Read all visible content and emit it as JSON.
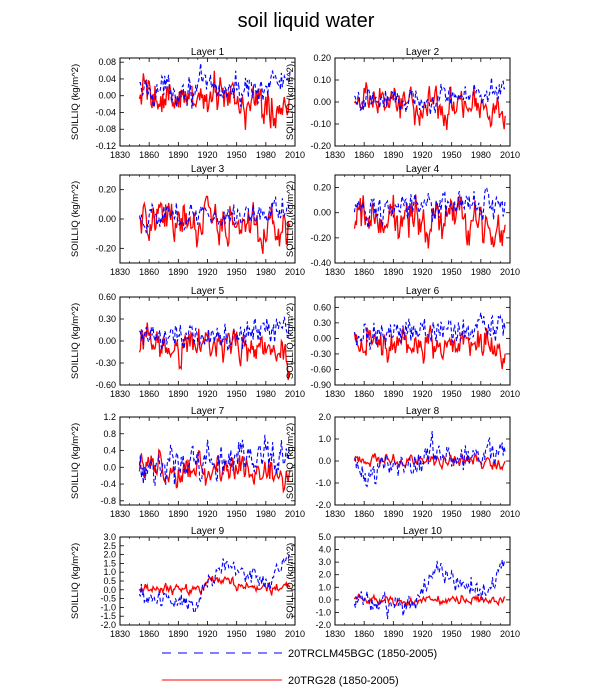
{
  "chart_data": {
    "type": "line",
    "title": "soil liquid water",
    "x_range": [
      1830,
      2010
    ],
    "x_ticks": [
      1830,
      1860,
      1890,
      1920,
      1950,
      1980,
      2010
    ],
    "legend": [
      {
        "label": "20TRCLM45BGC (1850-2005)",
        "color": "#0000ff",
        "style": "dashed"
      },
      {
        "label": "20TRG28 (1850-2005)",
        "color": "#ff0000",
        "style": "solid"
      }
    ],
    "series_period": [
      1850,
      2005
    ],
    "panels": [
      {
        "title": "Layer 1",
        "ylabel": "SOILLIQ  (kg/m^2)",
        "ylim": [
          -0.12,
          0.09
        ],
        "yticks": [
          -0.12,
          -0.08,
          -0.04,
          0.0,
          0.04,
          0.08
        ],
        "ytick_labels": [
          "-0.12",
          "-0.08",
          "-0.04",
          "0.00",
          "0.04",
          "0.08"
        ],
        "blue_trend": [
          [
            1850,
            0.01
          ],
          [
            1900,
            0.02
          ],
          [
            1950,
            0.01
          ],
          [
            2005,
            0.04
          ]
        ],
        "blue_amp": 0.025,
        "red_trend": [
          [
            1850,
            0.0
          ],
          [
            1900,
            -0.01
          ],
          [
            1950,
            -0.01
          ],
          [
            2005,
            -0.02
          ]
        ],
        "red_amp": 0.035
      },
      {
        "title": "Layer 2",
        "ylabel": "SOILLIQ  (kg/m^2)",
        "ylim": [
          -0.2,
          0.2
        ],
        "yticks": [
          -0.2,
          -0.1,
          0.0,
          0.1,
          0.2
        ],
        "ytick_labels": [
          "-0.20",
          "-0.10",
          "0.00",
          "0.10",
          "0.20"
        ],
        "blue_trend": [
          [
            1850,
            0.01
          ],
          [
            1900,
            0.01
          ],
          [
            1950,
            0.02
          ],
          [
            2005,
            0.05
          ]
        ],
        "blue_amp": 0.04,
        "red_trend": [
          [
            1850,
            0.0
          ],
          [
            1900,
            -0.02
          ],
          [
            1950,
            -0.01
          ],
          [
            2005,
            -0.04
          ]
        ],
        "red_amp": 0.06
      },
      {
        "title": "Layer 3",
        "ylabel": "SOILLIQ  (kg/m^2)",
        "ylim": [
          -0.3,
          0.3
        ],
        "yticks": [
          -0.2,
          0.0,
          0.2
        ],
        "ytick_labels": [
          "-0.20",
          "0.00",
          "0.20"
        ],
        "blue_trend": [
          [
            1850,
            0.02
          ],
          [
            1900,
            0.02
          ],
          [
            1950,
            0.02
          ],
          [
            2005,
            0.08
          ]
        ],
        "blue_amp": 0.06,
        "red_trend": [
          [
            1850,
            0.0
          ],
          [
            1900,
            -0.03
          ],
          [
            1950,
            -0.02
          ],
          [
            2005,
            -0.08
          ]
        ],
        "red_amp": 0.1
      },
      {
        "title": "Layer 4",
        "ylabel": "SOILLIQ  (kg/m^2)",
        "ylim": [
          -0.4,
          0.3
        ],
        "yticks": [
          -0.4,
          -0.2,
          0.0,
          0.2
        ],
        "ytick_labels": [
          "-0.40",
          "-0.20",
          "0.00",
          "0.20"
        ],
        "blue_trend": [
          [
            1850,
            0.03
          ],
          [
            1900,
            0.03
          ],
          [
            1950,
            0.03
          ],
          [
            2005,
            0.1
          ]
        ],
        "blue_amp": 0.08,
        "red_trend": [
          [
            1850,
            0.0
          ],
          [
            1900,
            -0.05
          ],
          [
            1950,
            -0.03
          ],
          [
            2005,
            -0.12
          ]
        ],
        "red_amp": 0.12
      },
      {
        "title": "Layer 5",
        "ylabel": "SOILLIQ  (kg/m^2)",
        "ylim": [
          -0.6,
          0.6
        ],
        "yticks": [
          -0.6,
          -0.3,
          0.0,
          0.3,
          0.6
        ],
        "ytick_labels": [
          "-0.60",
          "-0.30",
          "0.00",
          "0.30",
          "0.60"
        ],
        "blue_trend": [
          [
            1850,
            0.05
          ],
          [
            1900,
            0.08
          ],
          [
            1950,
            0.08
          ],
          [
            2005,
            0.2
          ]
        ],
        "blue_amp": 0.15,
        "red_trend": [
          [
            1850,
            0.0
          ],
          [
            1900,
            -0.08
          ],
          [
            1950,
            -0.06
          ],
          [
            2005,
            -0.2
          ]
        ],
        "red_amp": 0.17
      },
      {
        "title": "Layer 6",
        "ylabel": "SOILLIQ  (kg/m^2)",
        "ylim": [
          -0.9,
          0.8
        ],
        "yticks": [
          -0.9,
          -0.6,
          -0.3,
          0.0,
          0.3,
          0.6
        ],
        "ytick_labels": [
          "-0.90",
          "-0.60",
          "-0.30",
          "0.00",
          "0.30",
          "0.60"
        ],
        "blue_trend": [
          [
            1850,
            0.08
          ],
          [
            1900,
            0.1
          ],
          [
            1950,
            0.1
          ],
          [
            2005,
            0.25
          ]
        ],
        "blue_amp": 0.2,
        "red_trend": [
          [
            1850,
            0.0
          ],
          [
            1900,
            -0.1
          ],
          [
            1950,
            -0.08
          ],
          [
            2005,
            -0.3
          ]
        ],
        "red_amp": 0.22
      },
      {
        "title": "Layer 7",
        "ylabel": "SOILLIQ  (kg/m^2)",
        "ylim": [
          -0.9,
          1.2
        ],
        "yticks": [
          -0.8,
          -0.4,
          0.0,
          0.4,
          0.8,
          1.2
        ],
        "ytick_labels": [
          "-0.8",
          "-0.4",
          "0.0",
          "0.4",
          "0.8",
          "1.2"
        ],
        "blue_trend": [
          [
            1850,
            0.1
          ],
          [
            1900,
            0.1
          ],
          [
            1950,
            0.15
          ],
          [
            2005,
            0.3
          ]
        ],
        "blue_amp": 0.3,
        "red_trend": [
          [
            1850,
            0.05
          ],
          [
            1900,
            -0.05
          ],
          [
            1950,
            -0.05
          ],
          [
            2005,
            -0.2
          ]
        ],
        "red_amp": 0.25
      },
      {
        "title": "Layer 8",
        "ylabel": "SOILLIQ  (kg/m^2)",
        "ylim": [
          -2.0,
          2.0
        ],
        "yticks": [
          -2.0,
          -1.0,
          0.0,
          1.0,
          2.0
        ],
        "ytick_labels": [
          "-2.0",
          "-1.0",
          "0.0",
          "1.0",
          "2.0"
        ],
        "blue_trend": [
          [
            1850,
            -0.2
          ],
          [
            1900,
            -0.3
          ],
          [
            1935,
            0.6
          ],
          [
            1970,
            0.0
          ],
          [
            2005,
            0.5
          ]
        ],
        "blue_amp": 0.45,
        "red_trend": [
          [
            1850,
            0.1
          ],
          [
            1900,
            0.0
          ],
          [
            1950,
            0.1
          ],
          [
            2005,
            -0.1
          ]
        ],
        "red_amp": 0.2
      },
      {
        "title": "Layer 9",
        "ylabel": "SOILLIQ  (kg/m^2)",
        "ylim": [
          -2.0,
          3.0
        ],
        "yticks": [
          -2.0,
          -1.5,
          -1.0,
          -0.5,
          0.0,
          0.5,
          1.0,
          1.5,
          2.0,
          2.5,
          3.0
        ],
        "ytick_labels": [
          "-2.0",
          "-1.5",
          "-1.0",
          "-0.5",
          "0.0",
          "0.5",
          "1.0",
          "1.5",
          "2.0",
          "2.5",
          "3.0"
        ],
        "blue_trend": [
          [
            1850,
            -0.4
          ],
          [
            1910,
            -0.6
          ],
          [
            1935,
            1.4
          ],
          [
            1960,
            1.0
          ],
          [
            1980,
            0.3
          ],
          [
            2005,
            1.8
          ]
        ],
        "blue_amp": 0.45,
        "red_trend": [
          [
            1850,
            0.1
          ],
          [
            1900,
            -0.1
          ],
          [
            1930,
            0.6
          ],
          [
            1960,
            0.2
          ],
          [
            2005,
            0.1
          ]
        ],
        "red_amp": 0.2
      },
      {
        "title": "Layer 10",
        "ylabel": "SOILLIQ  (kg/m^2)",
        "ylim": [
          -2.0,
          5.0
        ],
        "yticks": [
          -2.0,
          -1.0,
          0.0,
          1.0,
          2.0,
          3.0,
          4.0,
          5.0
        ],
        "ytick_labels": [
          "-2.0",
          "-1.0",
          "0.0",
          "1.0",
          "2.0",
          "3.0",
          "4.0",
          "5.0"
        ],
        "blue_trend": [
          [
            1850,
            -0.3
          ],
          [
            1910,
            -0.6
          ],
          [
            1935,
            2.5
          ],
          [
            1960,
            1.2
          ],
          [
            1985,
            0.7
          ],
          [
            2005,
            2.8
          ]
        ],
        "blue_amp": 0.6,
        "red_trend": [
          [
            1850,
            0.1
          ],
          [
            1900,
            -0.1
          ],
          [
            1950,
            -0.1
          ],
          [
            2005,
            0.0
          ]
        ],
        "red_amp": 0.25
      }
    ]
  }
}
